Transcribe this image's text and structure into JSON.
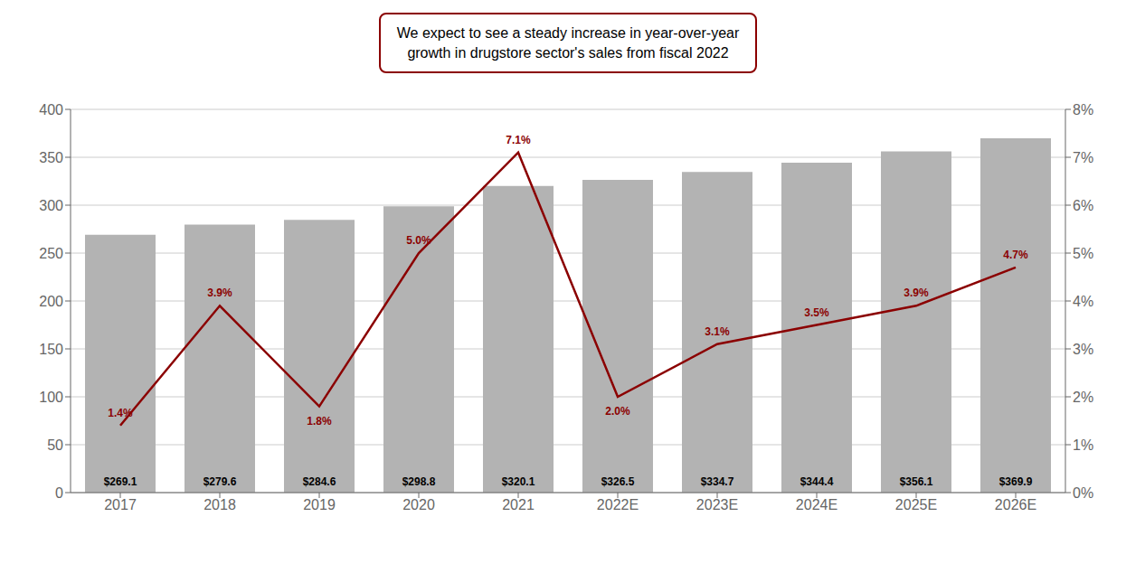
{
  "chart_data": {
    "type": "bar",
    "categories": [
      "2017",
      "2018",
      "2019",
      "2020",
      "2021",
      "2022E",
      "2023E",
      "2024E",
      "2025E",
      "2026E"
    ],
    "series": [
      {
        "type": "bar",
        "color": "#b3b3b3",
        "values": [
          269.1,
          279.6,
          284.6,
          298.8,
          320.1,
          326.5,
          334.7,
          344.4,
          356.1,
          369.9
        ],
        "value_labels": [
          "$269.1",
          "$279.6",
          "$284.6",
          "$298.8",
          "$320.1",
          "$326.5",
          "$334.7",
          "$344.4",
          "$356.1",
          "$369.9"
        ],
        "data_labels": true
      },
      {
        "type": "line",
        "axis": "y2",
        "color": "#8b0000",
        "values": [
          1.4,
          3.9,
          1.8,
          5.0,
          7.1,
          2.0,
          3.1,
          3.5,
          3.9,
          4.7
        ],
        "value_labels": [
          "1.4%",
          "3.9%",
          "1.8%",
          "5.0%",
          "7.1%",
          "2.0%",
          "3.1%",
          "3.5%",
          "3.9%",
          "4.7%"
        ],
        "data_labels": true
      }
    ],
    "ylim": [
      0,
      400
    ],
    "yticks": [
      0,
      50,
      100,
      150,
      200,
      250,
      300,
      350,
      400
    ],
    "y2lim": [
      0,
      8
    ],
    "y2ticks": [
      {
        "value": 0,
        "label": "0%"
      },
      {
        "value": 1,
        "label": "1%"
      },
      {
        "value": 2,
        "label": "2%"
      },
      {
        "value": 3,
        "label": "3%"
      },
      {
        "value": 4,
        "label": "4%"
      },
      {
        "value": 5,
        "label": "5%"
      },
      {
        "value": 6,
        "label": "6%"
      },
      {
        "value": 7,
        "label": "7%"
      },
      {
        "value": 8,
        "label": "8%"
      }
    ],
    "grid": true,
    "annotation": {
      "text": "We expect to see a steady increase in year-over-year\ngrowth in drugstore sector's sales from fiscal 2022",
      "color": "#8b0000"
    }
  }
}
